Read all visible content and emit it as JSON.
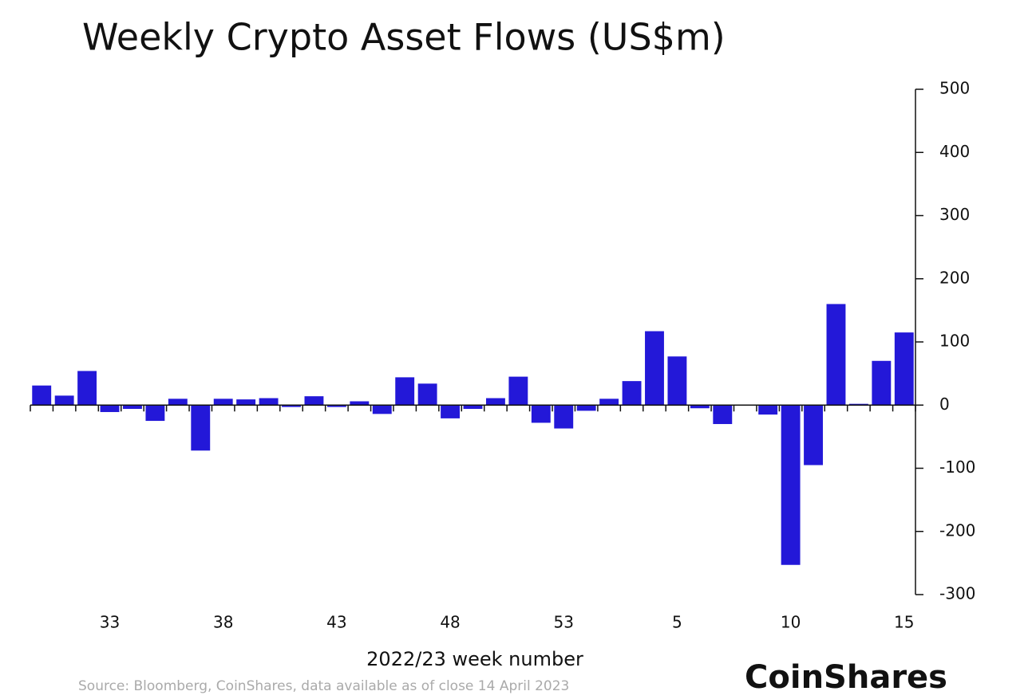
{
  "chart_data": {
    "type": "bar",
    "title": "Weekly Crypto Asset Flows (US$m)",
    "x_label": "2022/23 week number",
    "source": "Source: Bloomberg, CoinShares, data available as of close 14 April 2023",
    "logo": "CoinShares",
    "categories": [
      null,
      null,
      null,
      "33",
      null,
      null,
      null,
      null,
      "38",
      null,
      null,
      null,
      null,
      "43",
      null,
      null,
      null,
      null,
      "48",
      null,
      null,
      null,
      null,
      "53",
      null,
      null,
      null,
      null,
      "5",
      null,
      null,
      null,
      null,
      "10",
      null,
      null,
      null,
      null,
      "15"
    ],
    "values": [
      31,
      15,
      54,
      -11,
      -6,
      -25,
      10,
      -72,
      10,
      9,
      11,
      -3,
      14,
      -3,
      6,
      -14,
      44,
      34,
      -21,
      -6,
      11,
      45,
      -28,
      -37,
      -9,
      10,
      38,
      117,
      77,
      -5,
      -30,
      0,
      -15,
      -253,
      -95,
      160,
      2,
      70,
      115
    ],
    "color": "#2318d8",
    "ylim": [
      -300,
      500
    ],
    "yticks": [
      -300,
      -200,
      -100,
      0,
      100,
      200,
      300,
      400,
      500
    ],
    "grid": false
  }
}
